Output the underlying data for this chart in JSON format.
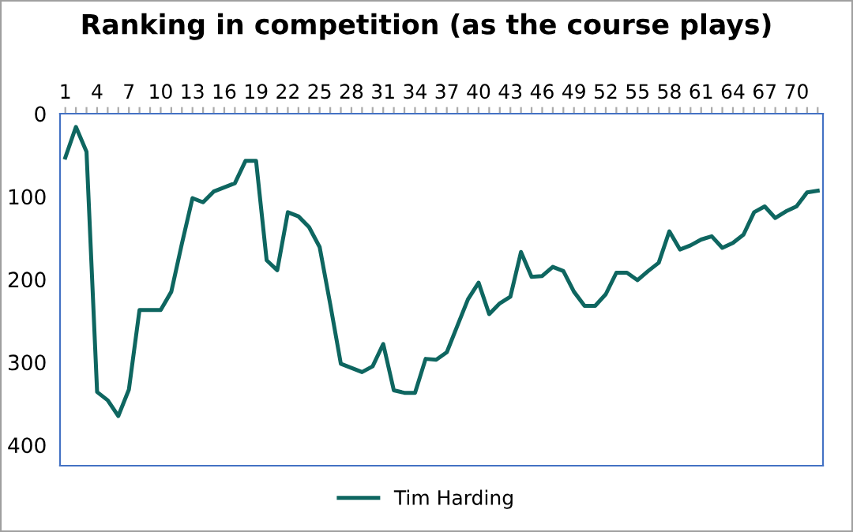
{
  "chart_data": {
    "type": "line",
    "title": "Ranking in competition (as the course plays)",
    "categories": [
      "1",
      null,
      null,
      "4",
      null,
      null,
      "7",
      null,
      null,
      "10",
      null,
      null,
      "13",
      null,
      null,
      "16",
      null,
      null,
      "19",
      null,
      null,
      "22",
      null,
      null,
      "25",
      null,
      null,
      "28",
      null,
      null,
      "31",
      null,
      null,
      "34",
      null,
      null,
      "37",
      null,
      null,
      "40",
      null,
      null,
      "43",
      null,
      null,
      "46",
      null,
      null,
      "49",
      null,
      null,
      "52",
      null,
      null,
      "55",
      null,
      null,
      "58",
      null,
      null,
      "61",
      null,
      null,
      "64",
      null,
      null,
      "67",
      null,
      null,
      "70",
      null,
      null
    ],
    "series": [
      {
        "name": "Tim Harding",
        "color": "#0e6660",
        "values": [
          53,
          16,
          46,
          336,
          346,
          365,
          333,
          237,
          237,
          237,
          215,
          157,
          102,
          107,
          94,
          89,
          84,
          57,
          57,
          177,
          189,
          119,
          124,
          137,
          161,
          230,
          302,
          307,
          312,
          305,
          278,
          334,
          337,
          337,
          296,
          297,
          288,
          256,
          224,
          204,
          242,
          229,
          221,
          167,
          197,
          196,
          185,
          190,
          215,
          232,
          232,
          218,
          192,
          192,
          201,
          190,
          180,
          142,
          164,
          159,
          152,
          148,
          162,
          156,
          146,
          119,
          112,
          126,
          118,
          112,
          95,
          93
        ]
      }
    ],
    "ylim": [
      425,
      0
    ],
    "yticks": [
      0,
      100,
      200,
      300,
      400
    ],
    "grid": false,
    "legend": "bottom",
    "marker": "none",
    "line_style": "solid"
  }
}
